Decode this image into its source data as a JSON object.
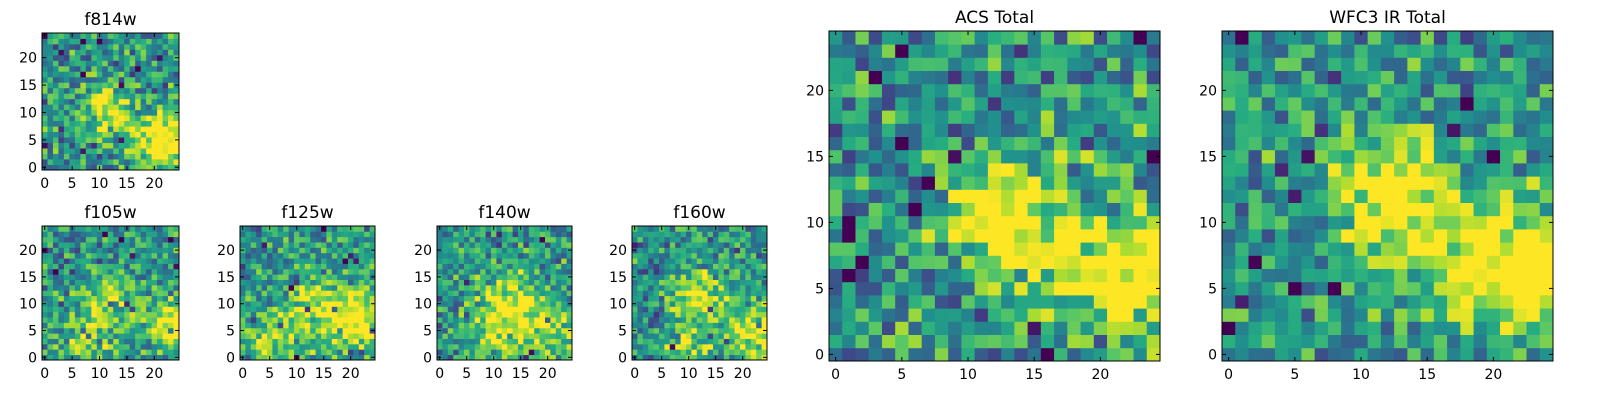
{
  "chart_data": [
    {
      "type": "heatmap",
      "title": "f814w",
      "colormap": "viridis",
      "xticks": [
        "0",
        "5",
        "10",
        "15",
        "20"
      ],
      "yticks": [
        "0",
        "5",
        "10",
        "15",
        "20"
      ],
      "xlim": [
        -0.5,
        24.5
      ],
      "ylim": [
        -0.5,
        24.5
      ],
      "grid_size": 25,
      "seed": 11,
      "noise": 0.55,
      "blobs": [
        {
          "x": 11,
          "y": 11,
          "r": 3,
          "amp": 0.45
        },
        {
          "x": 23,
          "y": 5,
          "r": 3.5,
          "amp": 0.55
        },
        {
          "x": 18,
          "y": 4,
          "r": 4,
          "amp": 0.25
        }
      ]
    },
    {
      "type": "heatmap",
      "title": "f105w",
      "colormap": "viridis",
      "xticks": [
        "0",
        "5",
        "10",
        "15",
        "20"
      ],
      "yticks": [
        "0",
        "5",
        "10",
        "15",
        "20"
      ],
      "xlim": [
        -0.5,
        24.5
      ],
      "ylim": [
        -0.5,
        24.5
      ],
      "grid_size": 25,
      "seed": 23,
      "noise": 0.5,
      "blobs": [
        {
          "x": 12,
          "y": 11,
          "r": 4,
          "amp": 0.3
        },
        {
          "x": 23,
          "y": 6,
          "r": 3,
          "amp": 0.6
        },
        {
          "x": 8,
          "y": 3,
          "r": 4,
          "amp": 0.25
        }
      ]
    },
    {
      "type": "heatmap",
      "title": "f125w",
      "colormap": "viridis",
      "xticks": [
        "0",
        "5",
        "10",
        "15",
        "20"
      ],
      "yticks": [
        "0",
        "5",
        "10",
        "15",
        "20"
      ],
      "xlim": [
        -0.5,
        24.5
      ],
      "ylim": [
        -0.5,
        24.5
      ],
      "grid_size": 25,
      "seed": 37,
      "noise": 0.5,
      "blobs": [
        {
          "x": 14,
          "y": 9,
          "r": 5,
          "amp": 0.35
        },
        {
          "x": 22,
          "y": 7,
          "r": 3.5,
          "amp": 0.5
        },
        {
          "x": 5,
          "y": 3,
          "r": 3,
          "amp": 0.35
        }
      ]
    },
    {
      "type": "heatmap",
      "title": "f140w",
      "colormap": "viridis",
      "xticks": [
        "0",
        "5",
        "10",
        "15",
        "20"
      ],
      "yticks": [
        "0",
        "5",
        "10",
        "15",
        "20"
      ],
      "xlim": [
        -0.5,
        24.5
      ],
      "ylim": [
        -0.5,
        24.5
      ],
      "grid_size": 25,
      "seed": 41,
      "noise": 0.5,
      "blobs": [
        {
          "x": 13,
          "y": 10,
          "r": 4,
          "amp": 0.45
        },
        {
          "x": 20,
          "y": 5,
          "r": 4,
          "amp": 0.35
        },
        {
          "x": 10,
          "y": 3,
          "r": 3,
          "amp": 0.3
        }
      ]
    },
    {
      "type": "heatmap",
      "title": "f160w",
      "colormap": "viridis",
      "xticks": [
        "0",
        "5",
        "10",
        "15",
        "20"
      ],
      "yticks": [
        "0",
        "5",
        "10",
        "15",
        "20"
      ],
      "xlim": [
        -0.5,
        24.5
      ],
      "ylim": [
        -0.5,
        24.5
      ],
      "grid_size": 25,
      "seed": 53,
      "noise": 0.5,
      "blobs": [
        {
          "x": 12,
          "y": 11,
          "r": 3.5,
          "amp": 0.45
        },
        {
          "x": 23,
          "y": 5,
          "r": 3.5,
          "amp": 0.5
        },
        {
          "x": 10,
          "y": 1,
          "r": 3,
          "amp": 0.35
        }
      ]
    },
    {
      "type": "heatmap",
      "title": "ACS Total",
      "colormap": "viridis",
      "xticks": [
        "0",
        "5",
        "10",
        "15",
        "20"
      ],
      "yticks": [
        "0",
        "5",
        "10",
        "15",
        "20"
      ],
      "xlim": [
        -0.5,
        24.5
      ],
      "ylim": [
        -0.5,
        24.5
      ],
      "grid_size": 25,
      "seed": 67,
      "noise": 0.55,
      "blobs": [
        {
          "x": 12,
          "y": 11,
          "r": 2.5,
          "amp": 0.55
        },
        {
          "x": 23,
          "y": 6,
          "r": 3,
          "amp": 0.6
        },
        {
          "x": 16,
          "y": 8,
          "r": 4,
          "amp": 0.3
        }
      ]
    },
    {
      "type": "heatmap",
      "title": "WFC3 IR Total",
      "colormap": "viridis",
      "xticks": [
        "0",
        "5",
        "10",
        "15",
        "20"
      ],
      "yticks": [
        "0",
        "5",
        "10",
        "15",
        "20"
      ],
      "xlim": [
        -0.5,
        24.5
      ],
      "ylim": [
        -0.5,
        24.5
      ],
      "grid_size": 25,
      "seed": 79,
      "noise": 0.5,
      "blobs": [
        {
          "x": 12,
          "y": 12,
          "r": 3,
          "amp": 0.5
        },
        {
          "x": 23,
          "y": 6,
          "r": 3,
          "amp": 0.6
        },
        {
          "x": 18,
          "y": 8,
          "r": 4,
          "amp": 0.35
        }
      ]
    }
  ]
}
